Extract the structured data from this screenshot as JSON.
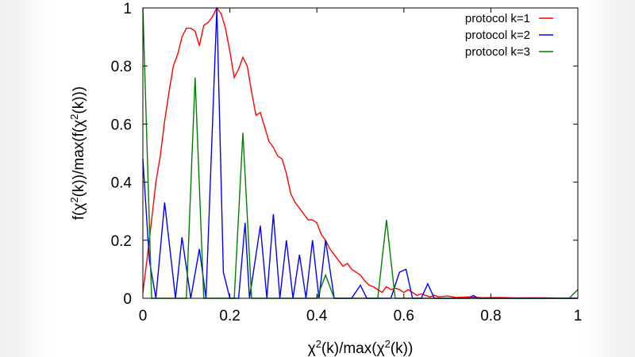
{
  "chart_data": {
    "type": "line",
    "title": "",
    "xlabel_parts": {
      "pre": "χ",
      "sup1": "2",
      "mid": "(k)/max(χ",
      "sup2": "2",
      "post": "(k))"
    },
    "ylabel_parts": {
      "pre": "f(χ",
      "sup1": "2",
      "mid": "(k))/max(f(χ",
      "sup2": "2",
      "post": "(k)))"
    },
    "xlim": [
      0,
      1
    ],
    "ylim": [
      0,
      1
    ],
    "xticks": [
      {
        "v": 0,
        "label": "0"
      },
      {
        "v": 0.2,
        "label": "0.2"
      },
      {
        "v": 0.4,
        "label": "0.4"
      },
      {
        "v": 0.6,
        "label": "0.6"
      },
      {
        "v": 0.8,
        "label": "0.8"
      },
      {
        "v": 1,
        "label": "1"
      }
    ],
    "yticks": [
      {
        "v": 0,
        "label": "0"
      },
      {
        "v": 0.2,
        "label": "0.2"
      },
      {
        "v": 0.4,
        "label": "0.4"
      },
      {
        "v": 0.6,
        "label": "0.6"
      },
      {
        "v": 0.8,
        "label": "0.8"
      },
      {
        "v": 1,
        "label": "1"
      }
    ],
    "grid": false,
    "legend_position": "top-right",
    "series": [
      {
        "name": "protocol k=1",
        "color": "#ff0000",
        "points": [
          [
            0,
            0.02
          ],
          [
            0.01,
            0.14
          ],
          [
            0.02,
            0.27
          ],
          [
            0.03,
            0.4
          ],
          [
            0.04,
            0.49
          ],
          [
            0.05,
            0.61
          ],
          [
            0.06,
            0.71
          ],
          [
            0.07,
            0.8
          ],
          [
            0.08,
            0.84
          ],
          [
            0.09,
            0.9
          ],
          [
            0.1,
            0.93
          ],
          [
            0.11,
            0.93
          ],
          [
            0.12,
            0.92
          ],
          [
            0.13,
            0.87
          ],
          [
            0.14,
            0.94
          ],
          [
            0.15,
            0.95
          ],
          [
            0.16,
            0.97
          ],
          [
            0.17,
            1.0
          ],
          [
            0.18,
            0.98
          ],
          [
            0.19,
            0.93
          ],
          [
            0.2,
            0.85
          ],
          [
            0.21,
            0.76
          ],
          [
            0.22,
            0.79
          ],
          [
            0.23,
            0.83
          ],
          [
            0.24,
            0.8
          ],
          [
            0.25,
            0.71
          ],
          [
            0.26,
            0.63
          ],
          [
            0.27,
            0.64
          ],
          [
            0.28,
            0.59
          ],
          [
            0.29,
            0.54
          ],
          [
            0.3,
            0.52
          ],
          [
            0.31,
            0.49
          ],
          [
            0.32,
            0.48
          ],
          [
            0.33,
            0.43
          ],
          [
            0.34,
            0.36
          ],
          [
            0.35,
            0.33
          ],
          [
            0.36,
            0.31
          ],
          [
            0.37,
            0.29
          ],
          [
            0.38,
            0.27
          ],
          [
            0.39,
            0.27
          ],
          [
            0.4,
            0.26
          ],
          [
            0.41,
            0.22
          ],
          [
            0.42,
            0.2
          ],
          [
            0.43,
            0.17
          ],
          [
            0.44,
            0.15
          ],
          [
            0.45,
            0.13
          ],
          [
            0.46,
            0.11
          ],
          [
            0.47,
            0.12
          ],
          [
            0.48,
            0.1
          ],
          [
            0.49,
            0.09
          ],
          [
            0.5,
            0.08
          ],
          [
            0.51,
            0.06
          ],
          [
            0.52,
            0.045
          ],
          [
            0.53,
            0.04
          ],
          [
            0.54,
            0.03
          ],
          [
            0.55,
            0.02
          ],
          [
            0.56,
            0.04
          ],
          [
            0.57,
            0.03
          ],
          [
            0.58,
            0.035
          ],
          [
            0.59,
            0.03
          ],
          [
            0.6,
            0.02
          ],
          [
            0.61,
            0.03
          ],
          [
            0.62,
            0.02
          ],
          [
            0.63,
            0.01
          ],
          [
            0.64,
            0.015
          ],
          [
            0.65,
            0.01
          ],
          [
            0.66,
            0.005
          ],
          [
            0.67,
            0.01
          ],
          [
            0.68,
            0.005
          ],
          [
            0.7,
            0.008
          ],
          [
            0.72,
            0.003
          ],
          [
            0.75,
            0.005
          ],
          [
            0.78,
            0.002
          ],
          [
            0.82,
            0.003
          ],
          [
            0.86,
            0.001
          ],
          [
            0.9,
            0.002
          ],
          [
            0.94,
            0.001
          ],
          [
            0.98,
            0.0
          ],
          [
            1.0,
            0.0
          ]
        ]
      },
      {
        "name": "protocol k=2",
        "color": "#0000ff",
        "points": [
          [
            0,
            0.48
          ],
          [
            0.015,
            0.13
          ],
          [
            0.03,
            0
          ],
          [
            0.05,
            0.33
          ],
          [
            0.075,
            0
          ],
          [
            0.09,
            0.21
          ],
          [
            0.11,
            0
          ],
          [
            0.13,
            0.17
          ],
          [
            0.145,
            0
          ],
          [
            0.17,
            1.0
          ],
          [
            0.185,
            0.09
          ],
          [
            0.2,
            0
          ],
          [
            0.22,
            0
          ],
          [
            0.235,
            0.26
          ],
          [
            0.245,
            0
          ],
          [
            0.27,
            0.25
          ],
          [
            0.285,
            0
          ],
          [
            0.3,
            0.29
          ],
          [
            0.315,
            0
          ],
          [
            0.33,
            0.2
          ],
          [
            0.345,
            0
          ],
          [
            0.36,
            0.15
          ],
          [
            0.375,
            0
          ],
          [
            0.39,
            0.2
          ],
          [
            0.405,
            0
          ],
          [
            0.42,
            0.2
          ],
          [
            0.44,
            0
          ],
          [
            0.48,
            0
          ],
          [
            0.5,
            0.045
          ],
          [
            0.515,
            0
          ],
          [
            0.57,
            0
          ],
          [
            0.59,
            0.09
          ],
          [
            0.605,
            0.1
          ],
          [
            0.62,
            0
          ],
          [
            0.64,
            0
          ],
          [
            0.655,
            0.05
          ],
          [
            0.67,
            0
          ],
          [
            0.75,
            0
          ],
          [
            0.76,
            0.01
          ],
          [
            0.77,
            0
          ],
          [
            1.0,
            0
          ]
        ]
      },
      {
        "name": "protocol k=3",
        "color": "#008000",
        "points": [
          [
            0,
            1.0
          ],
          [
            0.02,
            0
          ],
          [
            0.1,
            0
          ],
          [
            0.12,
            0.76
          ],
          [
            0.14,
            0
          ],
          [
            0.21,
            0
          ],
          [
            0.23,
            0.57
          ],
          [
            0.25,
            0
          ],
          [
            0.4,
            0
          ],
          [
            0.42,
            0.08
          ],
          [
            0.44,
            0
          ],
          [
            0.54,
            0
          ],
          [
            0.56,
            0.27
          ],
          [
            0.58,
            0
          ],
          [
            0.98,
            0
          ],
          [
            1.0,
            0.03
          ]
        ]
      }
    ]
  }
}
